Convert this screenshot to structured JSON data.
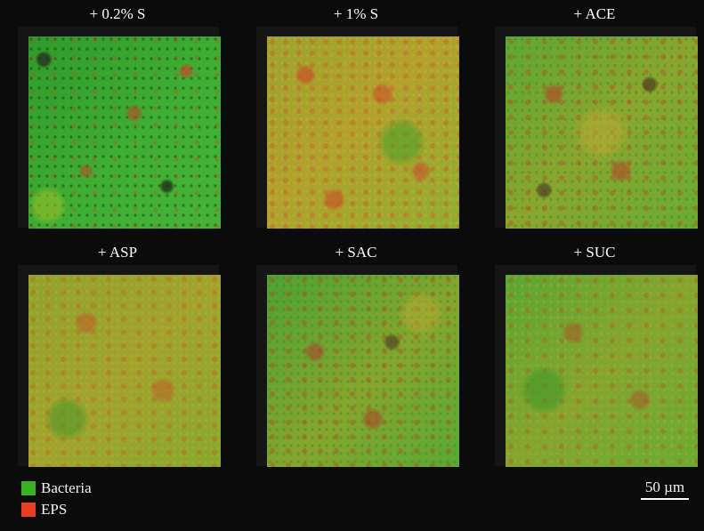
{
  "panels": [
    {
      "title": "+ 0.2% S",
      "tone": "green"
    },
    {
      "title": "+ 1% S",
      "tone": "yellow"
    },
    {
      "title": "+ ACE",
      "tone": "mixed"
    },
    {
      "title": "+ ASP",
      "tone": "yellow"
    },
    {
      "title": "+ SAC",
      "tone": "mixed"
    },
    {
      "title": "+ SUC",
      "tone": "mixed"
    }
  ],
  "legend": [
    {
      "label": "Bacteria",
      "color": "#39b21f"
    },
    {
      "label": "EPS",
      "color": "#e8401e"
    }
  ],
  "scale_bar": {
    "label": "50 µm"
  },
  "colors": {
    "background": "#0b0b0b",
    "green": "#3aa62f",
    "yellow": "#b3a62c",
    "red": "#c2422a"
  }
}
